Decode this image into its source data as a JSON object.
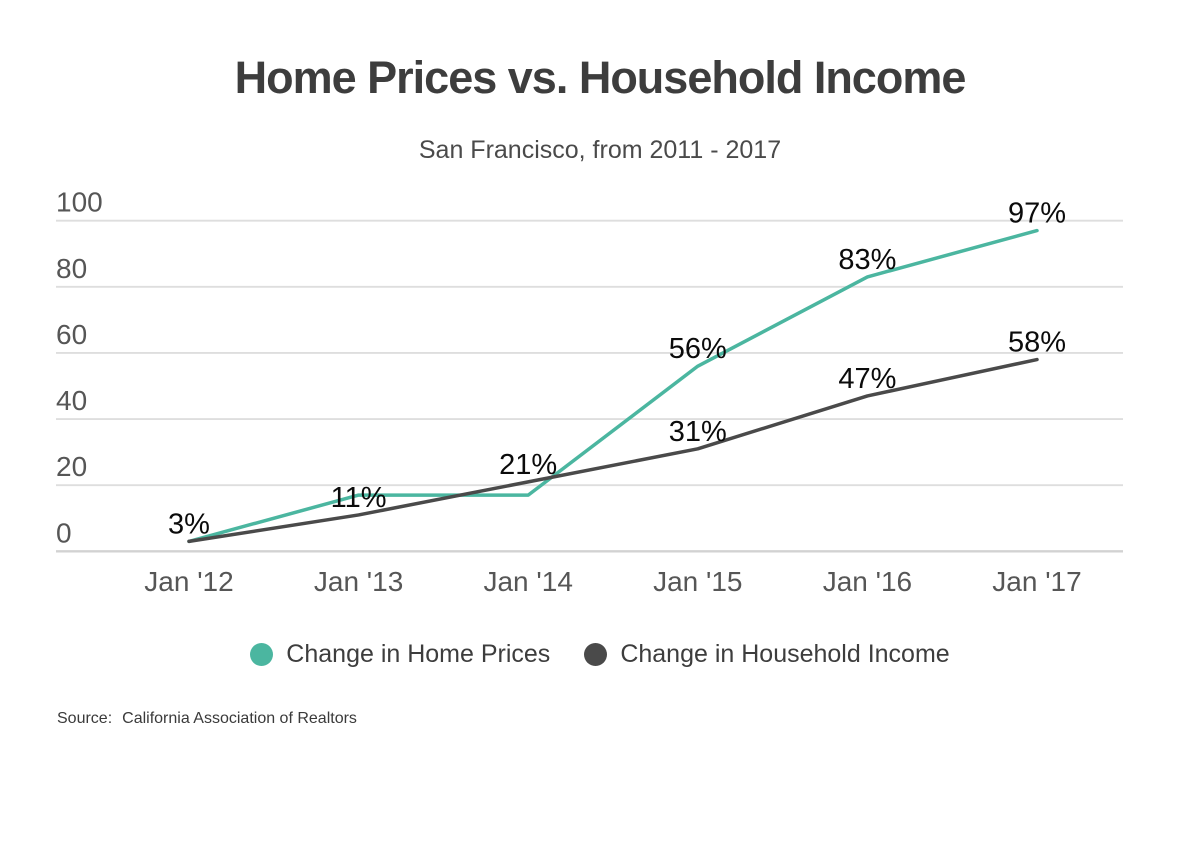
{
  "header": {
    "title": "Home Prices vs. Household Income",
    "subtitle": "San Francisco, from 2011 - 2017"
  },
  "chart_data": {
    "type": "line",
    "title": "Home Prices vs. Household Income",
    "subtitle": "San Francisco, from 2011 - 2017",
    "categories": [
      "Jan '12",
      "Jan '13",
      "Jan '14",
      "Jan '15",
      "Jan '16",
      "Jan '17"
    ],
    "series": [
      {
        "name": "Change in Home Prices",
        "color": "#4bb6a0",
        "values": [
          3,
          17,
          17,
          56,
          83,
          97
        ],
        "point_labels": [
          "",
          "",
          "",
          "56%",
          "83%",
          "97%"
        ]
      },
      {
        "name": "Change in Household Income",
        "color": "#4a4a4a",
        "values": [
          3,
          11,
          21,
          31,
          47,
          58
        ],
        "point_labels": [
          "3%",
          "11%",
          "21%",
          "31%",
          "47%",
          "58%"
        ]
      }
    ],
    "yticks": [
      0,
      20,
      40,
      60,
      80,
      100
    ],
    "ylim": [
      0,
      100
    ],
    "xlabel": "",
    "ylabel": "",
    "grid": true,
    "legend_position": "bottom"
  },
  "source": {
    "label": "Source:",
    "text": "California Association of Realtors"
  }
}
